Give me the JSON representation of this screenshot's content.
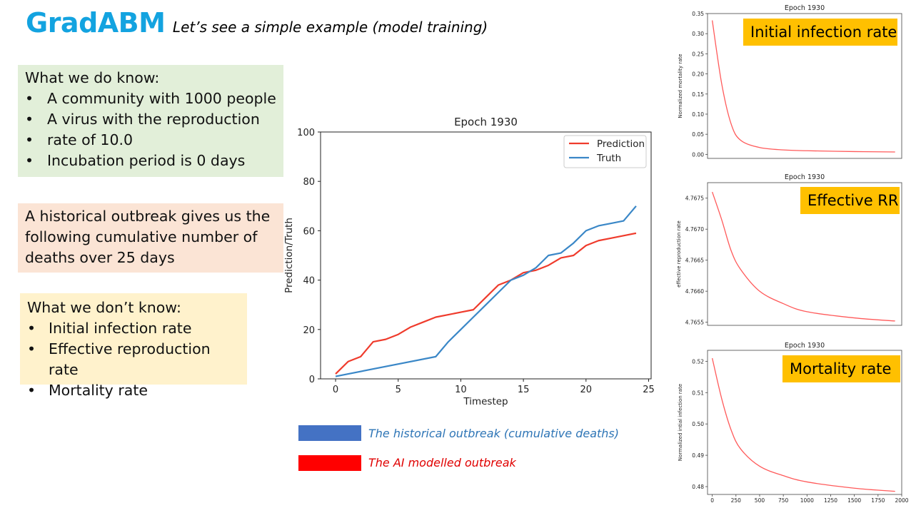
{
  "header": {
    "brand": "GradABM",
    "subtitle": "Let’s see a simple example (model training)"
  },
  "known": {
    "heading": "What we do know:",
    "items": [
      "A community with 1000 people",
      "A virus with the reproduction",
      "rate of 10.0",
      "Incubation period is 0 days"
    ]
  },
  "historical": {
    "lines": [
      "A historical outbreak gives us the",
      "following cumulative number of",
      "deaths over 25 days"
    ]
  },
  "unknown": {
    "heading": "What we don’t know:",
    "items": [
      "Initial infection rate",
      "Effective reproduction rate",
      "Mortality rate"
    ]
  },
  "legend": {
    "historical_label": "The historical outbreak (cumulative deaths)",
    "ai_label": "The AI modelled outbreak",
    "historical_color": "#4472c4",
    "ai_color": "#ff0000"
  },
  "colors": {
    "prediction": "#ef3b2c",
    "truth": "#3a87c7",
    "small_line": "#ff5a5a",
    "tag_bg": "#ffc000",
    "brand": "#13a3e0"
  },
  "tags": {
    "initial": "Initial infection rate",
    "effective": "Effective RR",
    "mortality": "Mortality rate"
  },
  "chart_data": [
    {
      "type": "line",
      "title": "Epoch 1930",
      "xlabel": "Timestep",
      "ylabel": "Prediction/Truth",
      "xlim": [
        -1.2,
        25.2
      ],
      "ylim": [
        0,
        100
      ],
      "xticks": [
        0,
        5,
        10,
        15,
        20,
        25
      ],
      "yticks": [
        0,
        20,
        40,
        60,
        80,
        100
      ],
      "legend_position": "top-right",
      "series": [
        {
          "name": "Prediction",
          "x": [
            0,
            1,
            2,
            3,
            4,
            5,
            6,
            7,
            8,
            9,
            10,
            11,
            12,
            13,
            14,
            15,
            16,
            17,
            18,
            19,
            20,
            21,
            22,
            23,
            24
          ],
          "y": [
            2,
            7,
            9,
            15,
            16,
            18,
            21,
            23,
            25,
            26,
            27,
            28,
            33,
            38,
            40,
            43,
            44,
            46,
            49,
            50,
            54,
            56,
            57,
            58,
            59
          ]
        },
        {
          "name": "Truth",
          "x": [
            0,
            8,
            9,
            10,
            11,
            12,
            13,
            14,
            15,
            16,
            17,
            18,
            19,
            20,
            21,
            22,
            23,
            24
          ],
          "y": [
            1,
            9,
            15,
            20,
            25,
            30,
            35,
            40,
            42,
            45,
            50,
            51,
            55,
            60,
            62,
            63,
            64,
            70
          ]
        }
      ]
    },
    {
      "type": "line",
      "title": "Epoch 1930",
      "xlabel": "",
      "ylabel": "Normalized mortality rate",
      "xlim": [
        -50,
        2000
      ],
      "ylim": [
        -0.01,
        0.35
      ],
      "yticks": [
        "0.00",
        "0.05",
        "0.10",
        "0.15",
        "0.20",
        "0.25",
        "0.30",
        "0.35"
      ],
      "series": [
        {
          "x": [
            0,
            100,
            200,
            300,
            500,
            750,
            1000,
            1500,
            1930
          ],
          "y": [
            0.333,
            0.175,
            0.075,
            0.035,
            0.017,
            0.011,
            0.009,
            0.007,
            0.006
          ]
        }
      ]
    },
    {
      "type": "line",
      "title": "Epoch 1930",
      "xlabel": "",
      "ylabel": "effective reproduction rate",
      "xlim": [
        -50,
        2000
      ],
      "ylim": [
        4.76545,
        4.76775
      ],
      "yticks": [
        "4.7655",
        "4.7660",
        "4.7665",
        "4.7670",
        "4.7675"
      ],
      "series": [
        {
          "x": [
            0,
            100,
            200,
            300,
            500,
            750,
            1000,
            1500,
            1930
          ],
          "y": [
            4.7676,
            4.76715,
            4.76665,
            4.76635,
            4.766,
            4.7658,
            4.76567,
            4.76557,
            4.76552
          ]
        }
      ]
    },
    {
      "type": "line",
      "title": "Epoch 1930",
      "xlabel": "",
      "ylabel": "Normalized intial infection rate",
      "xlim": [
        -50,
        2000
      ],
      "ylim": [
        0.4775,
        0.5235
      ],
      "xticks": [
        0,
        250,
        500,
        750,
        1000,
        1250,
        1500,
        1750,
        2000
      ],
      "yticks": [
        "0.48",
        "0.49",
        "0.50",
        "0.51",
        "0.52"
      ],
      "series": [
        {
          "x": [
            0,
            100,
            200,
            300,
            500,
            750,
            1000,
            1500,
            1930
          ],
          "y": [
            0.521,
            0.508,
            0.498,
            0.492,
            0.4865,
            0.4835,
            0.4815,
            0.4795,
            0.4785
          ]
        }
      ]
    }
  ]
}
